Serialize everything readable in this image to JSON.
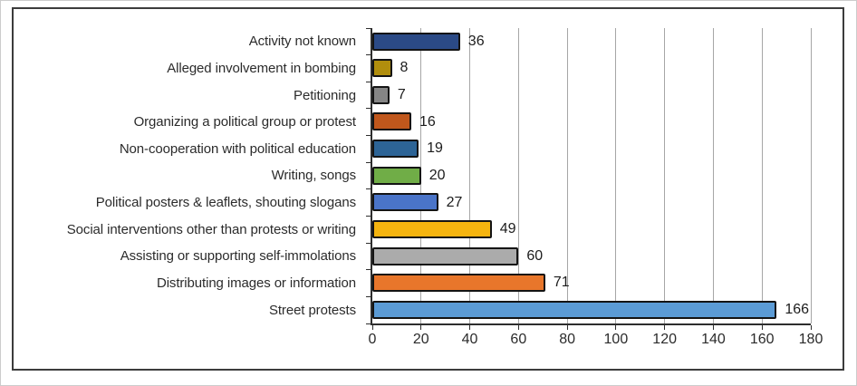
{
  "chart_data": {
    "type": "bar",
    "orientation": "horizontal",
    "title": "",
    "xlabel": "",
    "ylabel": "",
    "categories": [
      "Activity not known",
      "Alleged involvement in bombing",
      "Petitioning",
      "Organizing a political group or protest",
      "Non-cooperation with political education",
      "Writing, songs",
      "Political posters & leaflets, shouting slogans",
      "Social interventions other than protests or writing",
      "Assisting or supporting self-immolations",
      "Distributing images or information",
      "Street protests"
    ],
    "values": [
      36,
      8,
      7,
      16,
      19,
      20,
      27,
      49,
      60,
      71,
      166
    ],
    "bar_colors": [
      "#2b4a86",
      "#b18e0d",
      "#858585",
      "#c0571c",
      "#2d6496",
      "#70ad47",
      "#4a74c8",
      "#f5b40f",
      "#ababab",
      "#e8762b",
      "#5b9bd5"
    ],
    "bar_border_color": "#141414",
    "xlim": [
      0,
      180
    ],
    "xticks": [
      0,
      20,
      40,
      60,
      80,
      100,
      120,
      140,
      160,
      180
    ],
    "grid": "vertical",
    "gridline_color": "#a6a6a6",
    "value_labels_shown": true,
    "legend": "none"
  }
}
